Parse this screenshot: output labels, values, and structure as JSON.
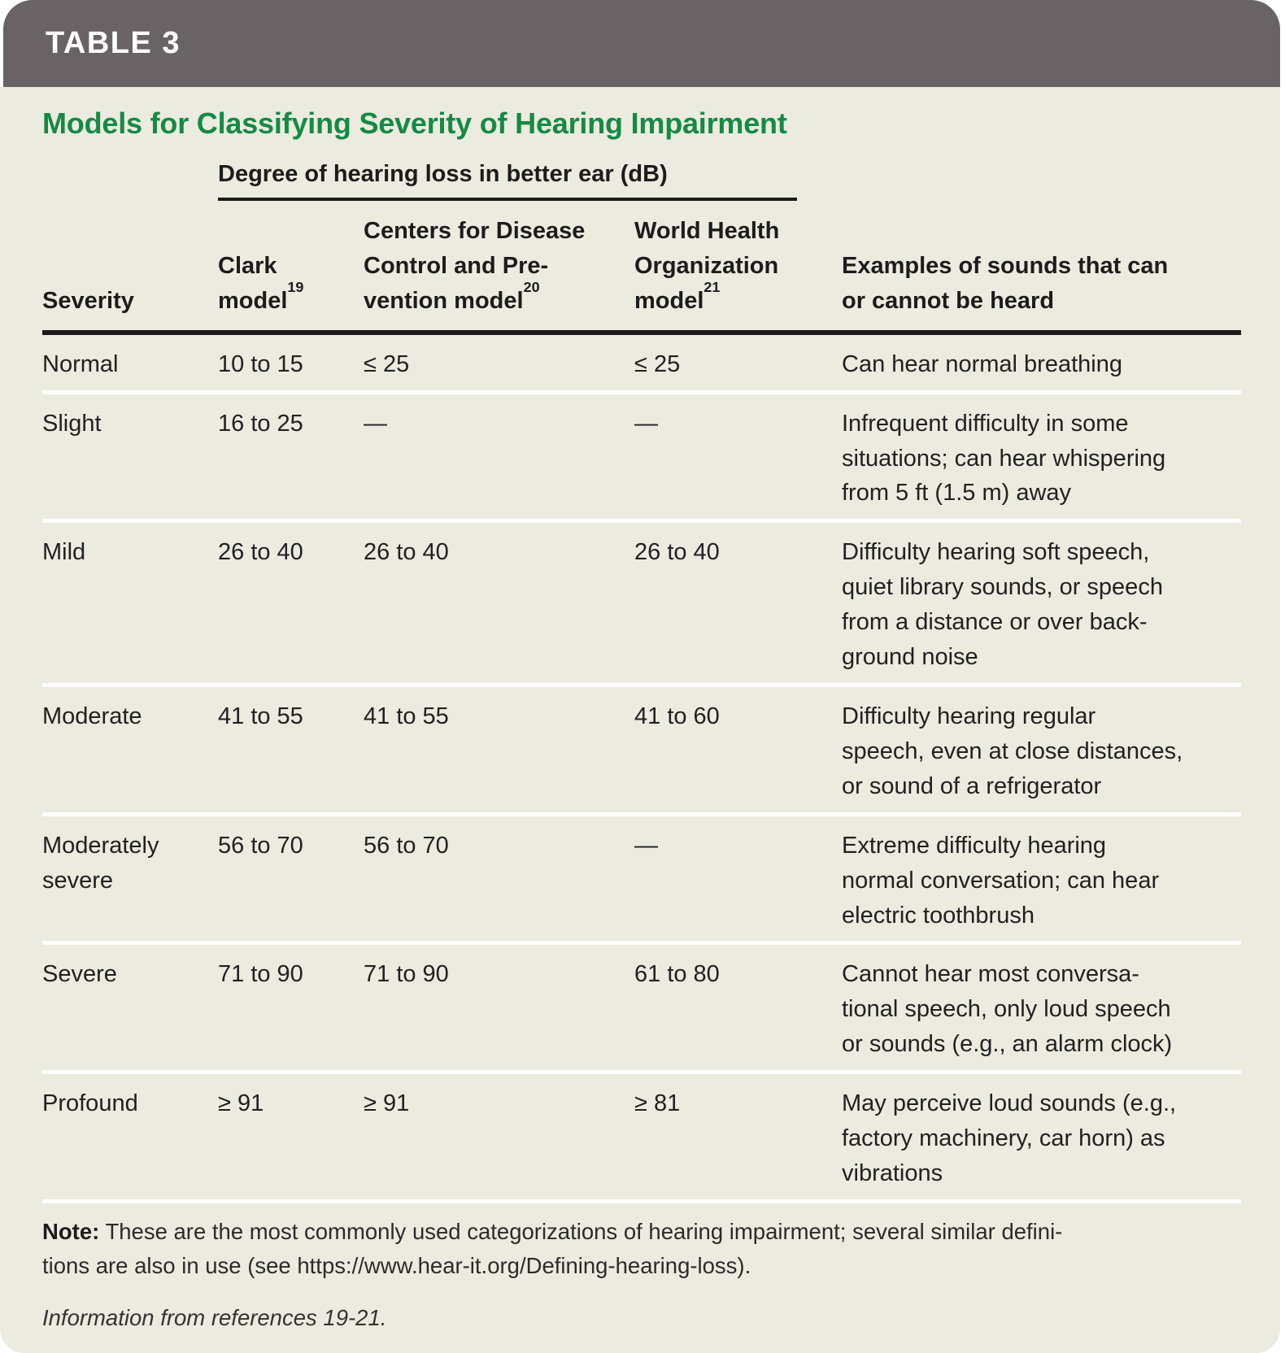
{
  "header": {
    "tag": "TABLE 3",
    "title": "Models for Classifying Severity of Hearing Impairment"
  },
  "span_header": "Degree of hearing loss in better ear (dB)",
  "columns": {
    "severity": "Severity",
    "clark": {
      "label": "Clark\nmodel",
      "ref": "19"
    },
    "cdc": {
      "label": "Centers for Disease\nControl and Pre-\nvention model",
      "ref": "20"
    },
    "who": {
      "label": "World Health\nOrganization\nmodel",
      "ref": "21"
    },
    "examples": "Examples of sounds that can\nor cannot be heard"
  },
  "rows": [
    {
      "severity": "Normal",
      "clark": "10 to 15",
      "cdc": "≤ 25",
      "who": "≤ 25",
      "examples": "Can hear normal breathing"
    },
    {
      "severity": "Slight",
      "clark": "16 to 25",
      "cdc": "—",
      "who": "—",
      "examples": "Infrequent difficulty in some\nsituations; can hear whispering\nfrom 5 ft (1.5 m) away"
    },
    {
      "severity": "Mild",
      "clark": "26 to 40",
      "cdc": "26 to 40",
      "who": "26 to 40",
      "examples": "Difficulty hearing soft speech,\nquiet library sounds, or speech\nfrom a distance or over back-\nground noise"
    },
    {
      "severity": "Moderate",
      "clark": "41 to 55",
      "cdc": "41 to 55",
      "who": "41 to 60",
      "examples": "Difficulty hearing regular\nspeech, even at close distances,\nor sound of a refrigerator"
    },
    {
      "severity": "Moderately\nsevere",
      "clark": "56 to 70",
      "cdc": "56 to 70",
      "who": "—",
      "examples": "Extreme difficulty hearing\nnormal conversation; can hear\nelectric toothbrush"
    },
    {
      "severity": "Severe",
      "clark": "71 to 90",
      "cdc": "71 to 90",
      "who": "61 to 80",
      "examples": "Cannot hear most conversa-\ntional speech, only loud speech\nor sounds (e.g., an alarm clock)"
    },
    {
      "severity": "Profound",
      "clark": "≥ 91",
      "cdc": "≥ 91",
      "who": "≥ 81",
      "examples": "May perceive loud sounds (e.g.,\nfactory machinery, car horn) as\nvibrations"
    }
  ],
  "note": {
    "label": "Note:",
    "text": "These are the most commonly used categorizations of hearing impairment; several similar defini-\ntions are also in use (see https://www.hear-it.org/Defining-hearing-loss)."
  },
  "attribution": "Information from references 19-21.",
  "colors": {
    "header_bar": "#6a6365",
    "panel_background": "#ecebe0",
    "title_green": "#148a45",
    "text": "#212121",
    "rule_black": "#1a1a1a",
    "row_separator_white": "#fdfdfd"
  }
}
